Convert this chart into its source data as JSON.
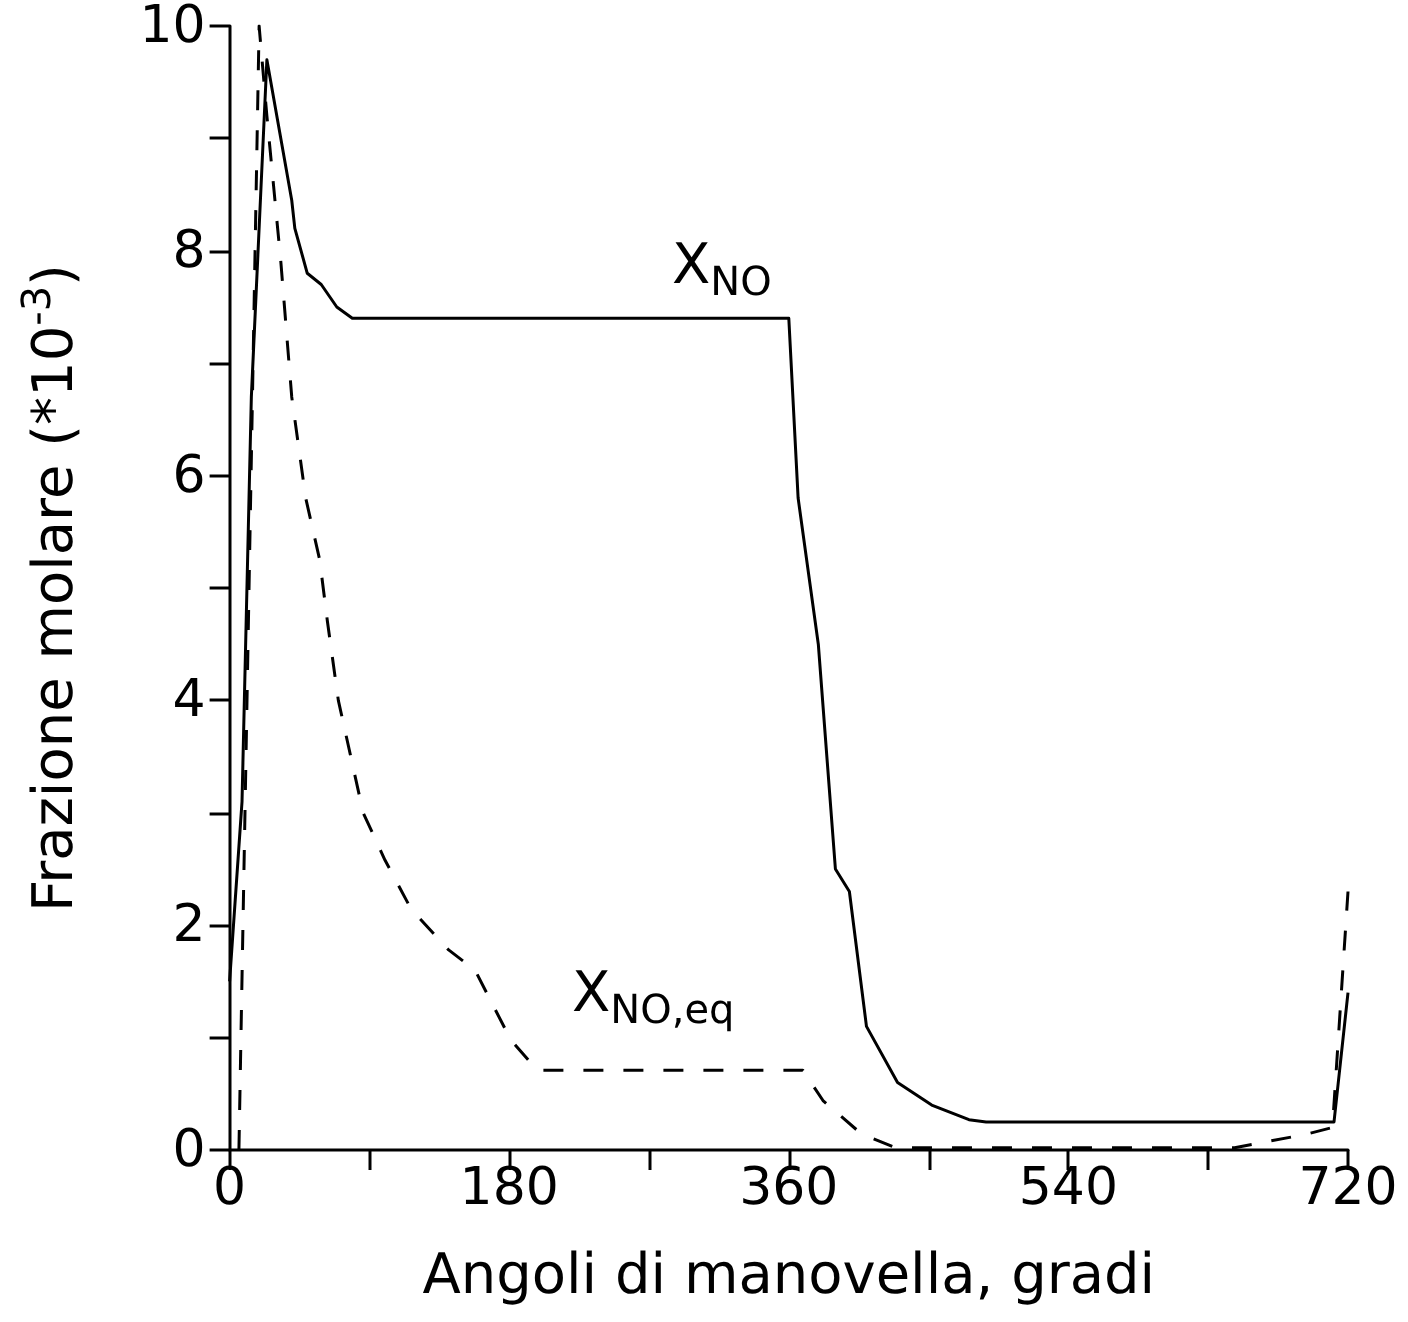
{
  "chart_data": {
    "type": "line",
    "xlabel": "Angoli di manovella, gradi",
    "ylabel": "Frazione molare (*10$^{-3}$)",
    "xlim": [
      0,
      720
    ],
    "ylim": [
      0,
      10
    ],
    "xticks": [
      0,
      {
        "value": 90,
        "label": null
      },
      180,
      {
        "value": 270,
        "label": null
      },
      360,
      {
        "value": 450,
        "label": null
      },
      540,
      {
        "value": 630,
        "label": null
      },
      720
    ],
    "yticks": [
      0,
      {
        "value": 1,
        "label": null
      },
      2,
      {
        "value": 3,
        "label": null
      },
      4,
      {
        "value": 5,
        "label": null
      },
      6,
      {
        "value": 7,
        "label": null
      },
      8,
      {
        "value": 9,
        "label": null
      },
      10
    ],
    "marker": "none",
    "series": [
      {
        "color": "#000000",
        "line_style": "solid",
        "x": [
          0,
          8,
          14,
          24,
          40,
          42,
          50,
          59,
          69,
          79,
          360,
          366,
          379,
          390,
          399,
          410,
          430,
          452,
          476,
          487,
          711,
          720
        ],
        "values": [
          1.5,
          3.1,
          6.7,
          9.7,
          8.45,
          8.2,
          7.8,
          7.7,
          7.5,
          7.4,
          7.4,
          5.8,
          4.5,
          2.5,
          2.3,
          1.1,
          0.6,
          0.4,
          0.27,
          0.25,
          0.25,
          1.4
        ]
      },
      {
        "color": "#000000",
        "line_style": "dashed",
        "x": [
          6,
          19,
          24,
          33,
          40,
          49,
          58,
          63,
          70,
          86,
          100,
          117,
          141,
          158,
          181,
          198,
          369,
          382,
          407,
          429,
          647,
          693,
          710,
          720
        ],
        "values": [
          0,
          10,
          9.2,
          7.9,
          6.7,
          5.8,
          5.25,
          4.7,
          4.0,
          3.0,
          2.58,
          2.14,
          1.78,
          1.6,
          0.98,
          0.71,
          0.71,
          0.44,
          0.14,
          0.02,
          0.02,
          0.14,
          0.2,
          2.3
        ]
      }
    ],
    "annotations": [
      "X$_{NO}$",
      "X$_{NO,eq}$"
    ]
  }
}
